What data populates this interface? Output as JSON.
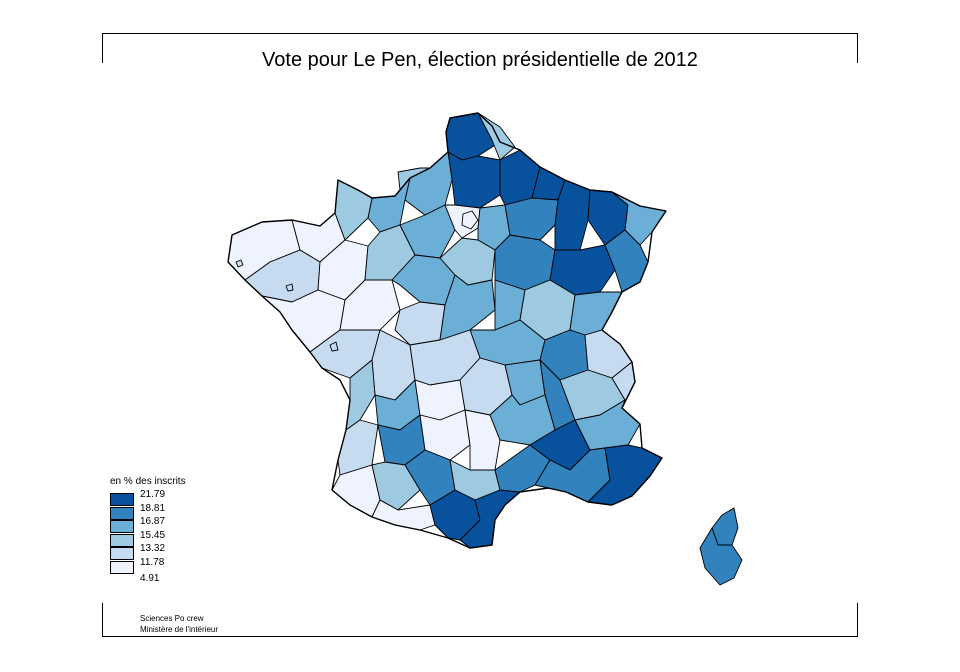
{
  "title": "Vote pour Le Pen, élection présidentielle de 2012",
  "legend": {
    "title": "en % des inscrits",
    "breaks": [
      "21.79",
      "18.81",
      "16.87",
      "15.45",
      "13.32",
      "11.78",
      "4.91"
    ],
    "colors": [
      "#08519c",
      "#3182bd",
      "#6baed6",
      "#9ecae1",
      "#c6dbef",
      "#eff3ff"
    ]
  },
  "credits": [
    "Sciences Po crew",
    "Ministère de l'intérieur"
  ],
  "map_data": {
    "type": "choropleth",
    "variable": "en % des inscrits",
    "class_breaks": [
      4.91,
      11.78,
      13.32,
      15.45,
      16.87,
      18.81,
      21.79
    ]
  }
}
